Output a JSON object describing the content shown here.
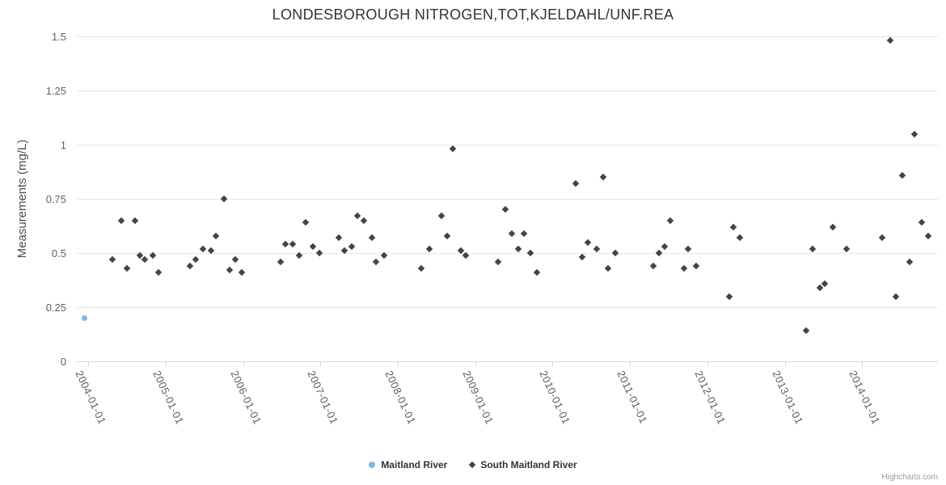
{
  "title": "LONDESBOROUGH NITROGEN,TOT,KJELDAHL/UNF.REA",
  "credits": "Highcharts.com",
  "colors": {
    "series1": "#7cb5ec",
    "series2": "#434348",
    "gridline": "#e6e6e6",
    "axis_line": "#ccd6eb",
    "title_text": "#333333",
    "tick_text": "#606060"
  },
  "legend": {
    "items": [
      {
        "label": "Maitland River",
        "marker": "circle",
        "color": "#7cb5ec"
      },
      {
        "label": "South Maitland River",
        "marker": "diamond",
        "color": "#434348"
      }
    ]
  },
  "chart_data": {
    "type": "scatter",
    "title": "LONDESBOROUGH NITROGEN,TOT,KJELDAHL/UNF.REA",
    "xlabel": "",
    "ylabel": "Measurements (mg/L)",
    "ylim": [
      0,
      1.5
    ],
    "xlim": [
      2003.85,
      2014.98
    ],
    "grid": true,
    "legend_position": "bottom",
    "y_ticks": [
      0,
      0.25,
      0.5,
      0.75,
      1,
      1.25,
      1.5
    ],
    "y_tick_labels": [
      "0",
      "0.25",
      "0.5",
      "0.75",
      "1",
      "1.25",
      "1.5"
    ],
    "x_tick_years": [
      2004,
      2005,
      2006,
      2007,
      2008,
      2009,
      2010,
      2011,
      2012,
      2013,
      2014
    ],
    "x_tick_labels": [
      "2004-01-01",
      "2005-01-01",
      "2006-01-01",
      "2007-01-01",
      "2008-01-01",
      "2009-01-01",
      "2010-01-01",
      "2011-01-01",
      "2012-01-01",
      "2013-01-01",
      "2014-01-01"
    ],
    "series": [
      {
        "name": "Maitland River",
        "marker": "circle",
        "color": "#7cb5ec",
        "points": [
          [
            2003.95,
            0.2
          ]
        ]
      },
      {
        "name": "South Maitland River",
        "marker": "diamond",
        "color": "#434348",
        "points": [
          [
            2004.31,
            0.47
          ],
          [
            2004.42,
            0.65
          ],
          [
            2004.5,
            0.43
          ],
          [
            2004.6,
            0.65
          ],
          [
            2004.66,
            0.49
          ],
          [
            2004.73,
            0.47
          ],
          [
            2004.83,
            0.49
          ],
          [
            2004.91,
            0.41
          ],
          [
            2005.31,
            0.44
          ],
          [
            2005.39,
            0.47
          ],
          [
            2005.48,
            0.52
          ],
          [
            2005.58,
            0.51
          ],
          [
            2005.65,
            0.58
          ],
          [
            2005.75,
            0.75
          ],
          [
            2005.82,
            0.42
          ],
          [
            2005.9,
            0.47
          ],
          [
            2005.98,
            0.41
          ],
          [
            2006.48,
            0.46
          ],
          [
            2006.55,
            0.54
          ],
          [
            2006.64,
            0.54
          ],
          [
            2006.72,
            0.49
          ],
          [
            2006.81,
            0.64
          ],
          [
            2006.9,
            0.53
          ],
          [
            2006.98,
            0.5
          ],
          [
            2007.24,
            0.57
          ],
          [
            2007.31,
            0.51
          ],
          [
            2007.4,
            0.53
          ],
          [
            2007.48,
            0.67
          ],
          [
            2007.56,
            0.65
          ],
          [
            2007.66,
            0.57
          ],
          [
            2007.72,
            0.46
          ],
          [
            2007.82,
            0.49
          ],
          [
            2008.3,
            0.43
          ],
          [
            2008.41,
            0.52
          ],
          [
            2008.56,
            0.67
          ],
          [
            2008.64,
            0.58
          ],
          [
            2008.71,
            0.98
          ],
          [
            2008.81,
            0.51
          ],
          [
            2008.88,
            0.49
          ],
          [
            2009.3,
            0.46
          ],
          [
            2009.39,
            0.7
          ],
          [
            2009.47,
            0.59
          ],
          [
            2009.56,
            0.52
          ],
          [
            2009.63,
            0.59
          ],
          [
            2009.71,
            0.5
          ],
          [
            2009.8,
            0.41
          ],
          [
            2010.3,
            0.82
          ],
          [
            2010.38,
            0.48
          ],
          [
            2010.46,
            0.55
          ],
          [
            2010.57,
            0.52
          ],
          [
            2010.65,
            0.85
          ],
          [
            2010.72,
            0.43
          ],
          [
            2010.81,
            0.5
          ],
          [
            2011.3,
            0.44
          ],
          [
            2011.37,
            0.5
          ],
          [
            2011.45,
            0.53
          ],
          [
            2011.52,
            0.65
          ],
          [
            2011.7,
            0.43
          ],
          [
            2011.75,
            0.52
          ],
          [
            2011.86,
            0.44
          ],
          [
            2012.28,
            0.3
          ],
          [
            2012.34,
            0.62
          ],
          [
            2012.42,
            0.57
          ],
          [
            2013.28,
            0.14
          ],
          [
            2013.36,
            0.52
          ],
          [
            2013.45,
            0.34
          ],
          [
            2013.52,
            0.36
          ],
          [
            2013.62,
            0.62
          ],
          [
            2013.8,
            0.52
          ],
          [
            2014.26,
            0.57
          ],
          [
            2014.36,
            1.48
          ],
          [
            2014.44,
            0.3
          ],
          [
            2014.52,
            0.86
          ],
          [
            2014.61,
            0.46
          ],
          [
            2014.68,
            1.05
          ],
          [
            2014.77,
            0.64
          ],
          [
            2014.85,
            0.58
          ]
        ]
      }
    ]
  }
}
